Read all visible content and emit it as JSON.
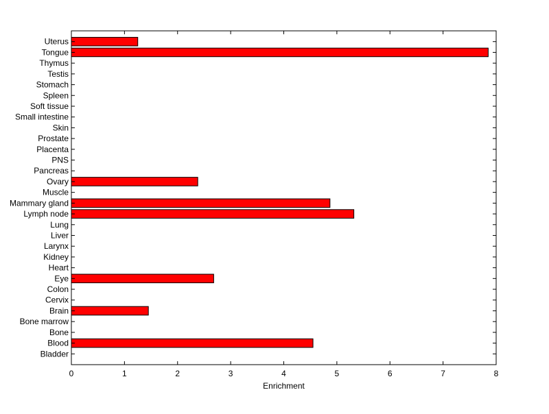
{
  "chart_data": {
    "type": "bar",
    "orientation": "horizontal",
    "title": "",
    "xlabel": "Enrichment",
    "ylabel": "",
    "xlim": [
      0,
      8
    ],
    "xticks": [
      "0",
      "1",
      "2",
      "3",
      "4",
      "5",
      "6",
      "7",
      "8"
    ],
    "grid": false,
    "legend": "none",
    "bar_color": "#ff0000",
    "categories": [
      "Bladder",
      "Blood",
      "Bone",
      "Bone marrow",
      "Brain",
      "Cervix",
      "Colon",
      "Eye",
      "Heart",
      "Kidney",
      "Larynx",
      "Liver",
      "Lung",
      "Lymph node",
      "Mammary gland",
      "Muscle",
      "Ovary",
      "Pancreas",
      "PNS",
      "Placenta",
      "Prostate",
      "Skin",
      "Small intestine",
      "Soft tissue",
      "Spleen",
      "Stomach",
      "Testis",
      "Thymus",
      "Tongue",
      "Uterus"
    ],
    "values": [
      0,
      4.55,
      0,
      0,
      1.45,
      0,
      0,
      2.68,
      0,
      0,
      0,
      0,
      0,
      5.32,
      4.87,
      0,
      2.38,
      0,
      0,
      0,
      0,
      0,
      0,
      0,
      0,
      0,
      0,
      0,
      7.85,
      1.25
    ]
  }
}
